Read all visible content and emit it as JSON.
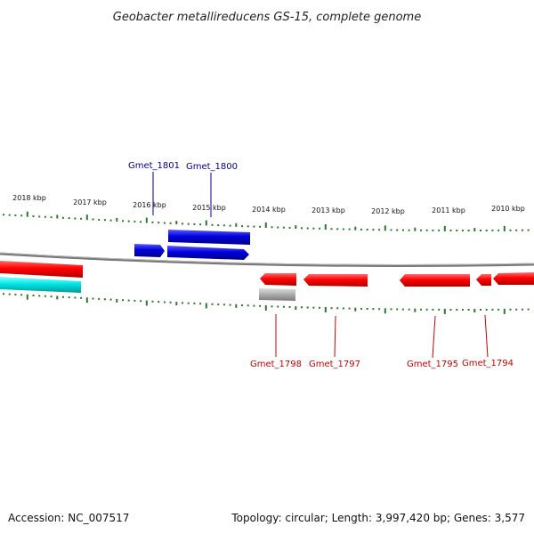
{
  "title": "Geobacter metallireducens GS-15, complete genome",
  "accession": "Accession: NC_007517",
  "summary": "Topology: circular; Length: 3,997,420 bp; Genes: 3,577",
  "colors": {
    "forward_gene": "#0000dd",
    "reverse_gene": "#ff0000",
    "rna_gene": "#00e5e5",
    "other_feature": "#b0b0b0",
    "ticks": "#2a7a2a",
    "backbone": "#808080",
    "forward_label": "#000099",
    "reverse_label": "#cc0000"
  },
  "kbp_labels": [
    "2018 kbp",
    "2017 kbp",
    "2016 kbp",
    "2015 kbp",
    "2014 kbp",
    "2013 kbp",
    "2012 kbp",
    "2011 kbp",
    "2010 kbp"
  ],
  "forward_gene_labels": [
    "Gmet_1801",
    "Gmet_1800"
  ],
  "reverse_gene_labels": [
    "Gmet_1798",
    "Gmet_1797",
    "Gmet_1795",
    "Gmet_1794"
  ]
}
